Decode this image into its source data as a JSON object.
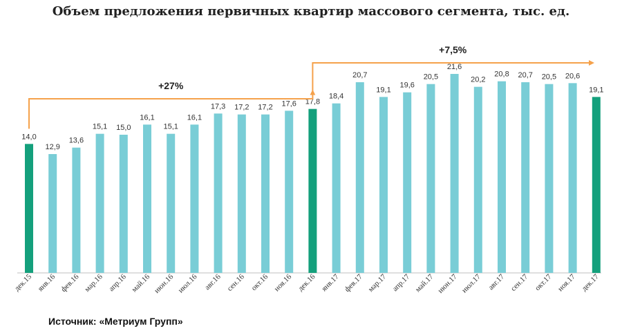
{
  "chart_data": {
    "type": "bar",
    "title": "Объем предложения первичных квартир массового сегмента, тыс. ед.",
    "categories": [
      "дек.15",
      "янв.16",
      "фев.16",
      "мар.16",
      "апр.16",
      "май.16",
      "июн.16",
      "июл.16",
      "авг.16",
      "сен.16",
      "окт.16",
      "ноя.16",
      "дек.16",
      "янв.17",
      "фев.17",
      "мар.17",
      "апр.17",
      "май.17",
      "июн.17",
      "июл.17",
      "авг.17",
      "сен.17",
      "окт.17",
      "ноя.17",
      "дек.17"
    ],
    "values": [
      14.0,
      12.9,
      13.6,
      15.1,
      15.0,
      16.1,
      15.1,
      16.1,
      17.3,
      17.2,
      17.2,
      17.6,
      17.8,
      18.4,
      20.7,
      19.1,
      19.6,
      20.5,
      21.6,
      20.2,
      20.8,
      20.7,
      20.5,
      20.6,
      19.1
    ],
    "value_labels": [
      "14,0",
      "12,9",
      "13,6",
      "15,1",
      "15,0",
      "16,1",
      "15,1",
      "16,1",
      "17,3",
      "17,2",
      "17,2",
      "17,6",
      "17,8",
      "18,4",
      "20,7",
      "19,1",
      "19,6",
      "20,5",
      "21,6",
      "20,2",
      "20,8",
      "20,7",
      "20,5",
      "20,6",
      "19,1"
    ],
    "highlighted": [
      "дек.15",
      "дек.16",
      "дек.17"
    ],
    "ylim": [
      0,
      22.5
    ],
    "xlabel": "",
    "ylabel": "",
    "grid": false,
    "annotations": [
      {
        "text": "+27%",
        "from": "дек.15",
        "to": "дек.16"
      },
      {
        "text": "+7,5%",
        "from": "дек.16",
        "to": "дек.17"
      }
    ],
    "colors": {
      "bar": "#79cdd6",
      "highlight": "#14a07c",
      "arrow": "#f5a14a",
      "axis": "#bfbfbf"
    }
  },
  "source": "Источник: «Метриум Групп»"
}
